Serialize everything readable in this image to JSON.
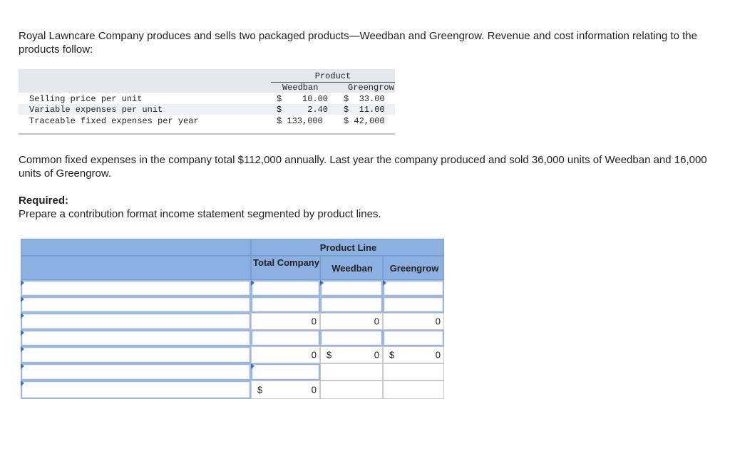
{
  "intro": "Royal Lawncare Company produces and sells two packaged products—Weedban and Greengrow. Revenue and cost information relating to the products follow:",
  "data_table": {
    "product_header": "Product",
    "columns": [
      "Weedban",
      "Greengrow"
    ],
    "rows": [
      {
        "label": "Selling price per unit",
        "weedban": "$    10.00",
        "greengrow": "$  33.00"
      },
      {
        "label": "Variable expenses per unit",
        "weedban": "$     2.40",
        "greengrow": "$  11.00"
      },
      {
        "label": "Traceable fixed expenses per year",
        "weedban": "$ 133,000",
        "greengrow": "$ 42,000"
      }
    ]
  },
  "common_text": "Common fixed expenses in the company total $112,000 annually. Last year the company produced and sold 36,000 units of Weedban and 16,000 units of Greengrow.",
  "required_heading": "Required:",
  "required_text": "Prepare a contribution format income statement segmented by product lines.",
  "grid": {
    "product_line_header": "Product Line",
    "total_header": "Total Company",
    "weedban_header": "Weedban",
    "greengrow_header": "Greengrow",
    "currency_symbol": "$",
    "zero": "0"
  }
}
